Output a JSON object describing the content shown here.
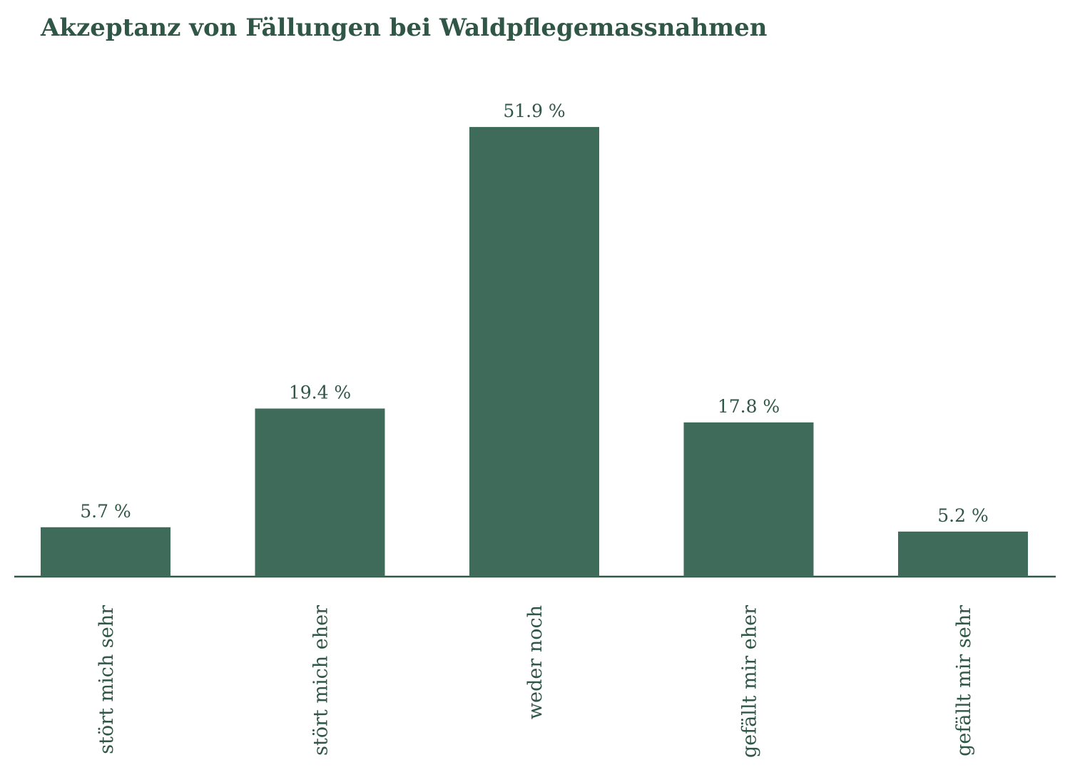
{
  "chart_data": {
    "type": "bar",
    "title": "Akzeptanz von Fällungen bei Waldpflegemassnahmen",
    "categories": [
      "stört mich sehr",
      "stört mich eher",
      "weder noch",
      "gefällt mir eher",
      "gefällt mir sehr"
    ],
    "values": [
      5.7,
      19.4,
      51.9,
      17.8,
      5.2
    ],
    "value_labels": [
      "5.7 %",
      "19.4 %",
      "51.9 %",
      "17.8 %",
      "5.2 %"
    ],
    "color": "#3f6b5b"
  }
}
